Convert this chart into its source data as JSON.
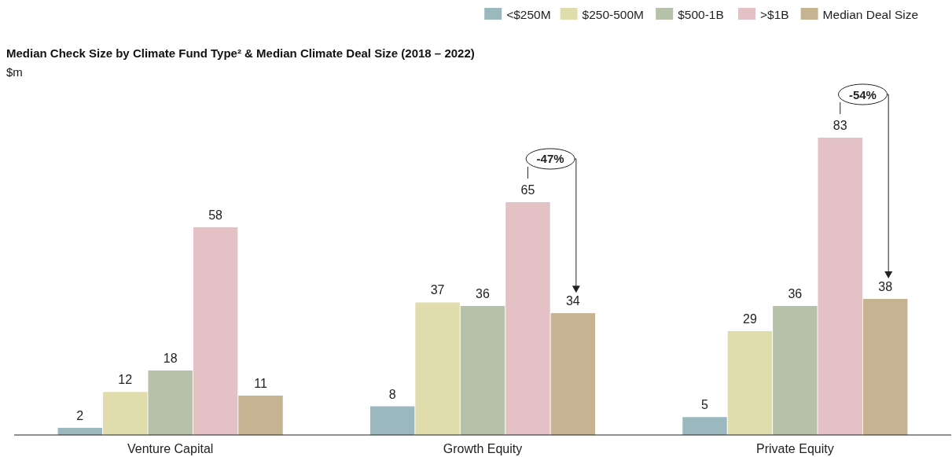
{
  "chart_data": {
    "type": "bar",
    "title": "Median Check Size by Climate Fund Type² & Median Climate Deal Size (2018 – 2022)",
    "ylabel": "$m",
    "categories": [
      "Venture Capital",
      "Growth Equity",
      "Private Equity"
    ],
    "series": [
      {
        "name": "<$250M",
        "color": "#9bb8be",
        "values": [
          2,
          8,
          5
        ]
      },
      {
        "name": "$250-500M",
        "color": "#e0dcab",
        "values": [
          12,
          37,
          29
        ]
      },
      {
        "name": "$500-1B",
        "color": "#b5c1a8",
        "values": [
          18,
          36,
          36
        ]
      },
      {
        "name": ">$1B",
        "color": "#e3c1c4",
        "values": [
          58,
          65,
          83
        ]
      },
      {
        "name": "Median Deal Size",
        "color": "#c6b391",
        "values": [
          11,
          34,
          38
        ]
      }
    ],
    "annotations": [
      "-47%",
      "-54%"
    ],
    "data_labels": true,
    "legend": "top right"
  }
}
